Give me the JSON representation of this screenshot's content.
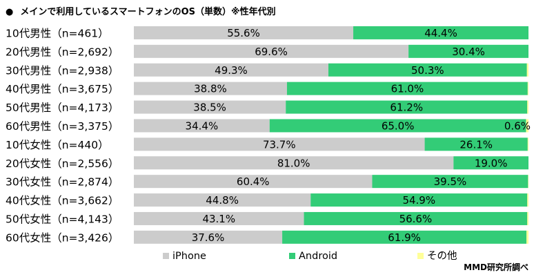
{
  "title_bullet": "●",
  "chart_data": {
    "type": "bar",
    "orientation": "horizontal",
    "stacked": true,
    "title": "メインで利用しているスマートフォンのOS（単数）※性年代別",
    "categories": [
      "10代男性（n=461）",
      "20代男性（n=2,692）",
      "30代男性（n=2,938）",
      "40代男性（n=3,675）",
      "50代男性（n=4,173）",
      "60代男性（n=3,375）",
      "10代女性（n=440）",
      "20代女性（n=2,556）",
      "30代女性（n=2,874）",
      "40代女性（n=3,662）",
      "50代女性（n=4,143）",
      "60代女性（n=3,426）"
    ],
    "series": [
      {
        "name": "iPhone",
        "color": "#cccccc",
        "values": [
          55.6,
          69.6,
          49.3,
          38.8,
          38.5,
          34.4,
          73.7,
          81.0,
          60.4,
          44.8,
          43.1,
          37.6
        ],
        "labels": [
          "55.6%",
          "69.6%",
          "49.3%",
          "38.8%",
          "38.5%",
          "34.4%",
          "73.7%",
          "81.0%",
          "60.4%",
          "44.8%",
          "43.1%",
          "37.6%"
        ]
      },
      {
        "name": "Android",
        "color": "#33cc77",
        "values": [
          44.4,
          30.4,
          50.3,
          61.0,
          61.2,
          65.0,
          26.1,
          19.0,
          39.5,
          54.9,
          56.6,
          61.9
        ],
        "labels": [
          "44.4%",
          "30.4%",
          "50.3%",
          "61.0%",
          "61.2%",
          "65.0%",
          "26.1%",
          "19.0%",
          "39.5%",
          "54.9%",
          "56.6%",
          "61.9%"
        ]
      },
      {
        "name": "その他",
        "color": "#ffff99",
        "values": [
          0.0,
          0.0,
          0.4,
          0.2,
          0.3,
          0.6,
          0.2,
          0.0,
          0.1,
          0.3,
          0.3,
          0.5
        ],
        "labels": [
          "",
          "",
          "",
          "",
          "",
          "0.6%",
          "",
          "",
          "",
          "",
          "",
          ""
        ]
      }
    ],
    "xlim": [
      0,
      100
    ],
    "legend_position": "bottom",
    "source": "MMD研究所調べ"
  }
}
